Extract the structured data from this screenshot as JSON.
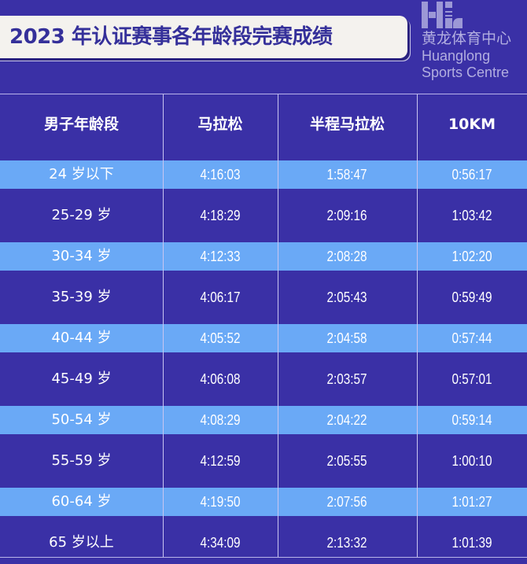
{
  "title": "2023 年认证赛事各年龄段完赛成绩",
  "table": {
    "headers": [
      "男子年龄段",
      "马拉松",
      "半程马拉松",
      "10KM"
    ],
    "rows": [
      [
        "24 岁以下",
        "4:16:03",
        "1:58:47",
        "0:56:17"
      ],
      [
        "25-29 岁",
        "4:18:29",
        "2:09:16",
        "1:03:42"
      ],
      [
        "30-34 岁",
        "4:12:33",
        "2:08:28",
        "1:02:20"
      ],
      [
        "35-39 岁",
        "4:06:17",
        "2:05:43",
        "0:59:49"
      ],
      [
        "40-44 岁",
        "4:05:52",
        "2:04:58",
        "0:57:44"
      ],
      [
        "45-49 岁",
        "4:06:08",
        "2:03:57",
        "0:57:01"
      ],
      [
        "50-54 岁",
        "4:08:29",
        "2:04:22",
        "0:59:14"
      ],
      [
        "55-59 岁",
        "4:12:59",
        "2:05:55",
        "1:00:10"
      ],
      [
        "60-64 岁",
        "4:19:50",
        "2:07:56",
        "1:01:27"
      ],
      [
        "65 岁以上",
        "4:34:09",
        "2:13:32",
        "1:01:39"
      ]
    ]
  },
  "watermark": {
    "cn": "黄龙体育中心",
    "en1": "Huanglong",
    "en2": "Sports Centre"
  },
  "colors": {
    "background": "#3a30a6",
    "highlight_band": "#6aa9f6",
    "title_bg": "#f4f2ee",
    "title_text": "#35309a"
  }
}
